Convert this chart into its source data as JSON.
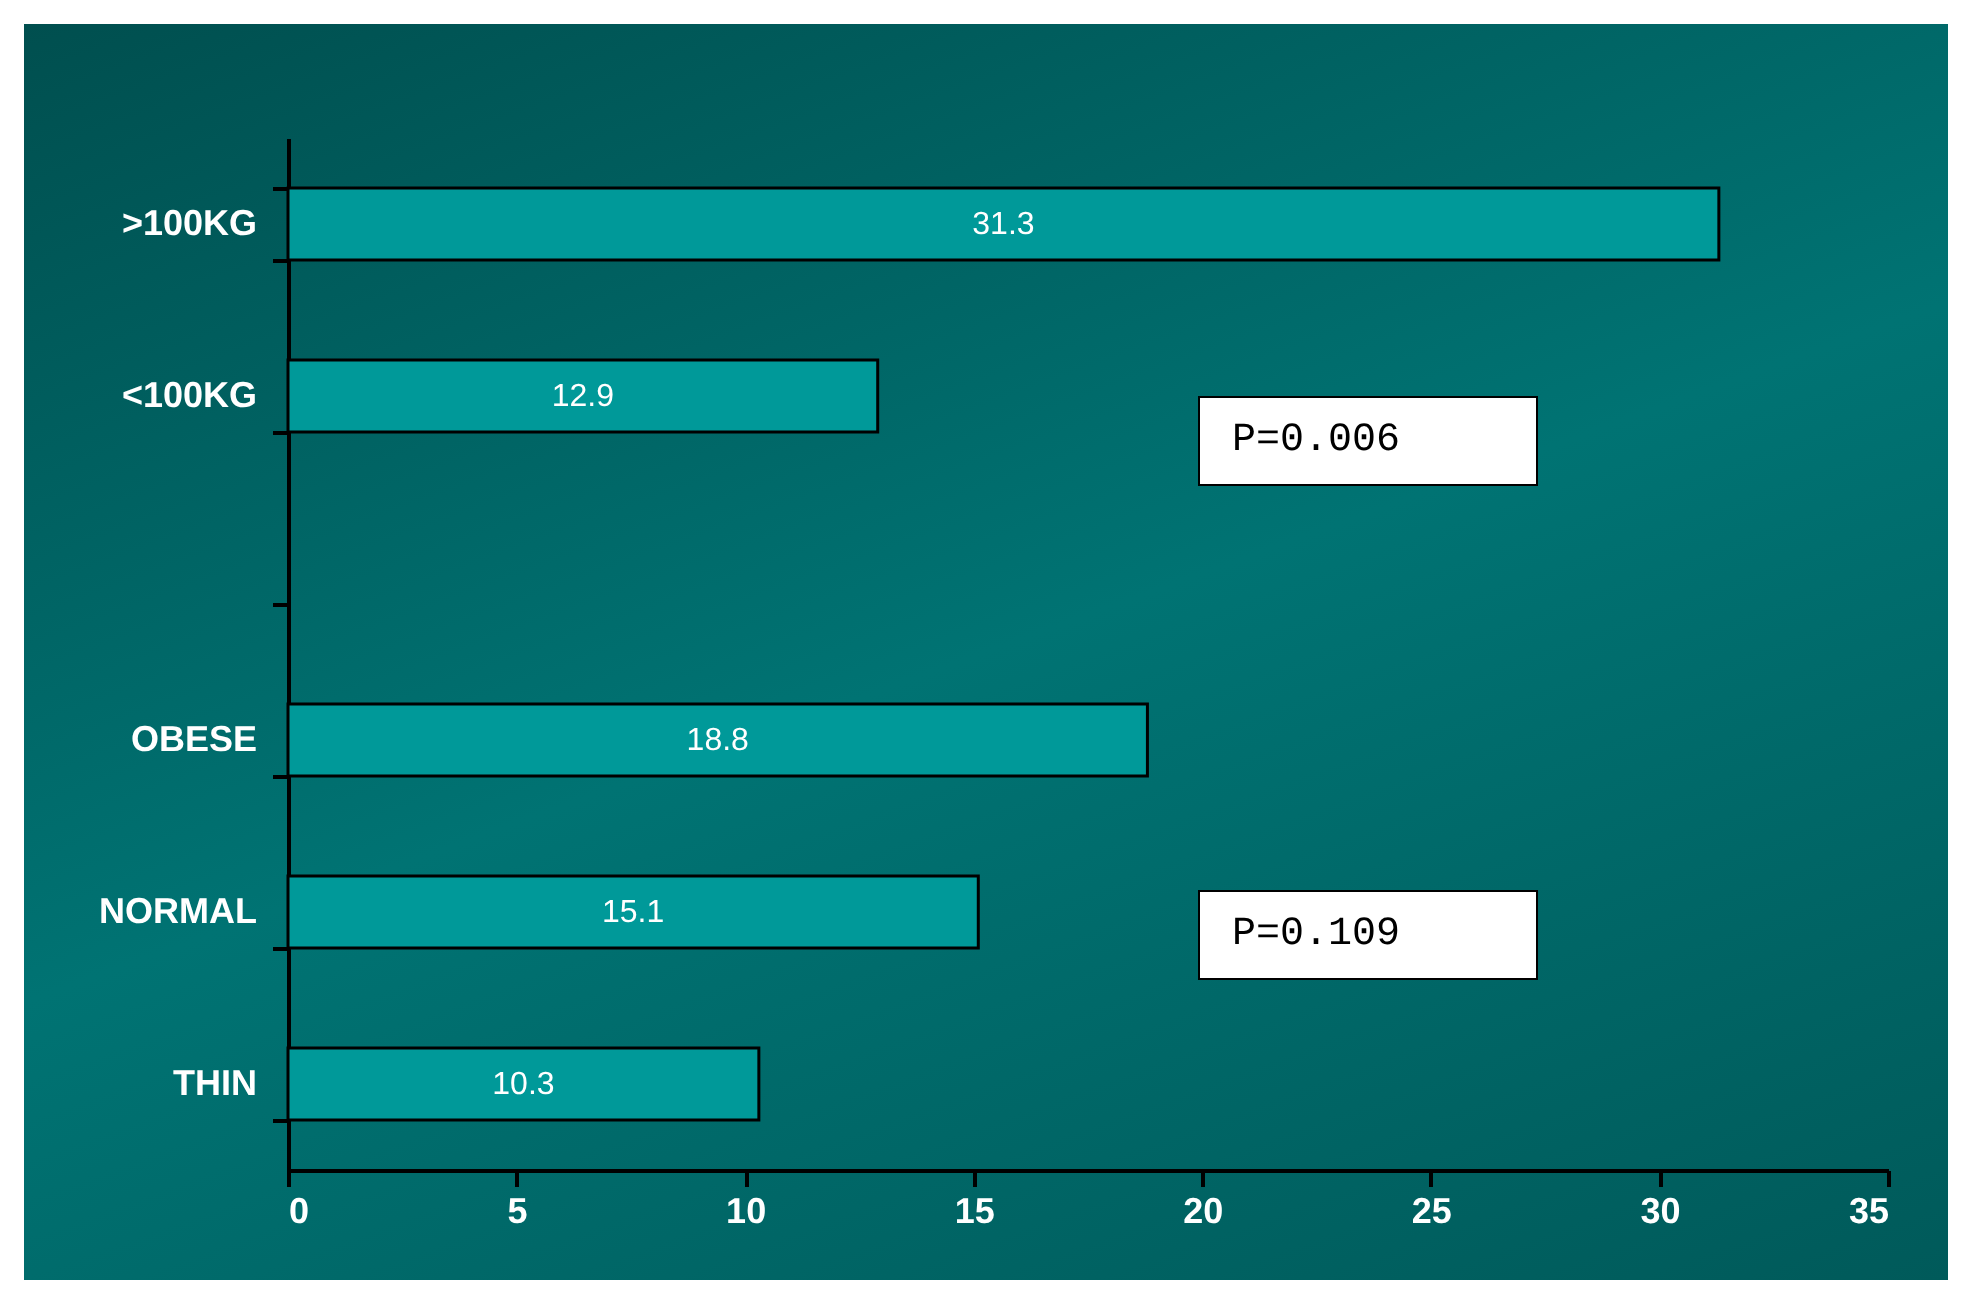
{
  "chart_data": {
    "type": "bar",
    "orientation": "horizontal",
    "categories": [
      ">100KG",
      "<100KG",
      null,
      "OBESE",
      "NORMAL",
      "THIN"
    ],
    "values": [
      31.3,
      12.9,
      null,
      18.8,
      15.1,
      10.3
    ],
    "color": "#009999",
    "xlim": [
      0,
      35
    ],
    "xticks": [
      0,
      5,
      10,
      15,
      20,
      25,
      30,
      35
    ],
    "data_labels": true,
    "grid": false,
    "annotations": [
      "P=0.006",
      "P=0.109"
    ]
  }
}
